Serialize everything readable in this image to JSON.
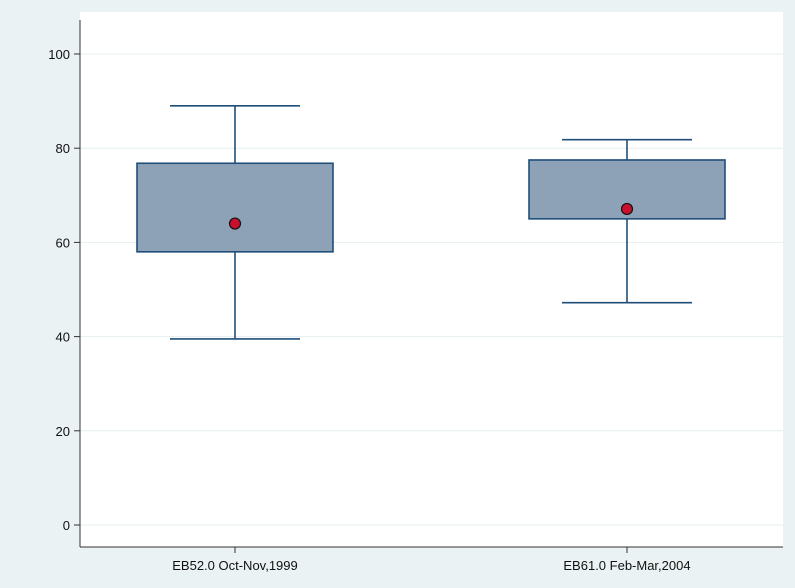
{
  "chart_data": {
    "type": "box",
    "title": "",
    "xlabel": "",
    "ylabel": "",
    "ylim": [
      0,
      100
    ],
    "yticks": [
      0,
      20,
      40,
      60,
      80,
      100
    ],
    "grid": true,
    "categories": [
      "EB52.0 Oct-Nov,1999",
      "EB61.0 Feb-Mar,2004"
    ],
    "boxes": [
      {
        "category": "EB52.0 Oct-Nov,1999",
        "whisker_low": 39.5,
        "q1": 58,
        "q3": 76.8,
        "whisker_high": 89,
        "mean": 64
      },
      {
        "category": "EB61.0 Feb-Mar,2004",
        "whisker_low": 47.2,
        "q1": 65,
        "q3": 77.5,
        "whisker_high": 81.8,
        "mean": 67.1
      }
    ],
    "colors": {
      "background": "#eaf2f3",
      "plot_background": "#ffffff",
      "grid": "#e4eeef",
      "box_fill": "#8da2b6",
      "box_stroke": "#1f4e79",
      "mean_marker": "#c8102e",
      "axis": "#333333"
    }
  }
}
